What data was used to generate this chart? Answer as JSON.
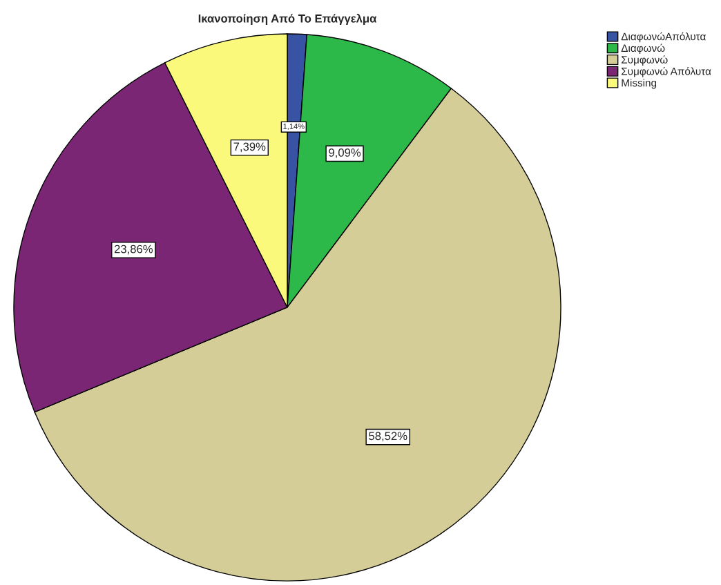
{
  "chart_data": {
    "type": "pie",
    "title": "Ικανοποίηση Από Το Επάγγελμα",
    "categories": [
      "ΔιαφωνώΑπόλυτα",
      "Διαφωνώ",
      "Συμφωνώ",
      "Συμφωνώ Απόλυτα",
      "Missing"
    ],
    "values": [
      1.14,
      9.09,
      58.52,
      23.86,
      7.39
    ],
    "colors": [
      "#3953a4",
      "#2db84a",
      "#d4cd97",
      "#7b2675",
      "#fbf97b"
    ],
    "value_labels": [
      "1,14%",
      "9,09%",
      "58,52%",
      "23,86%",
      "7,39%"
    ],
    "legend": "top right"
  }
}
